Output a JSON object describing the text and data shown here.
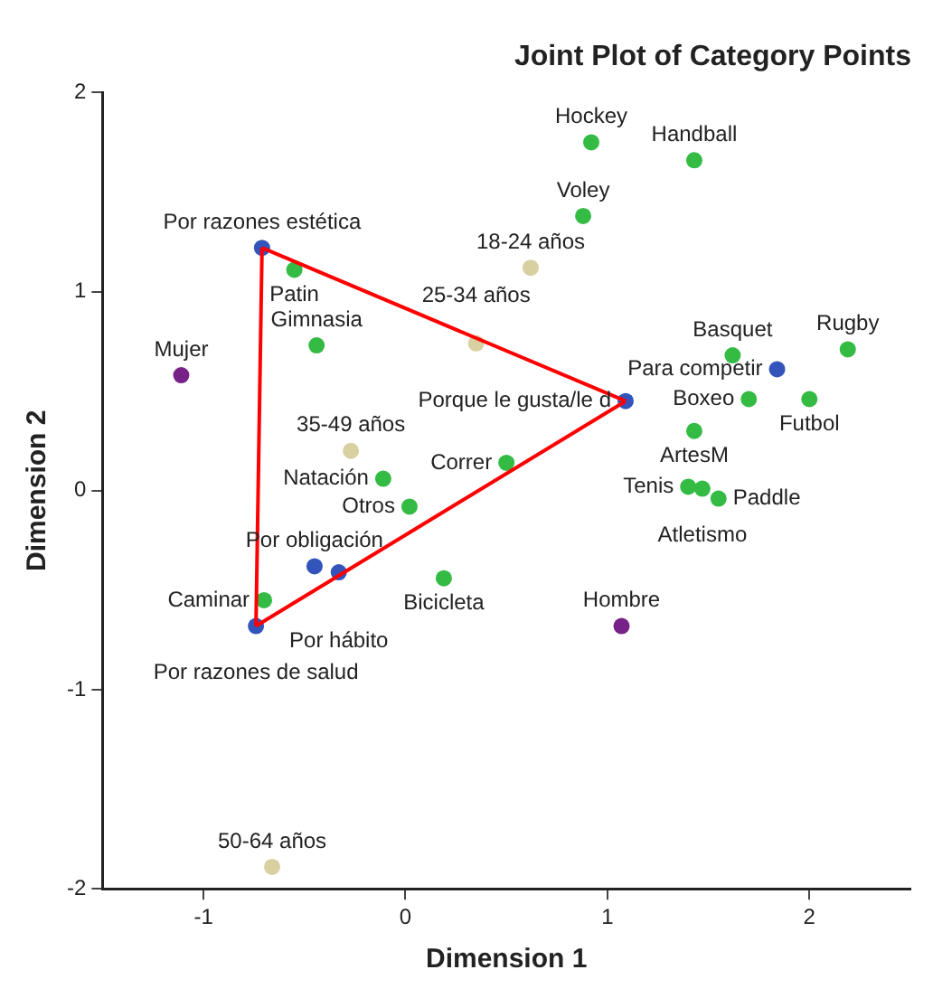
{
  "chart_data": {
    "type": "scatter",
    "title": "Joint Plot of Category Points",
    "xlabel": "Dimension 1",
    "ylabel": "Dimension 2",
    "xlim": [
      -1.5,
      2.5
    ],
    "ylim": [
      -2,
      2
    ],
    "xticks": [
      -1,
      0,
      1,
      2
    ],
    "yticks": [
      -2,
      -1,
      0,
      1,
      2
    ],
    "grid": false,
    "legend": false,
    "marker": "circle",
    "series": [
      {
        "type": "line",
        "color": "#ff0000",
        "marker": "none",
        "x": [
          -0.74,
          -0.71
        ],
        "values": [
          -0.68,
          1.22
        ]
      },
      {
        "type": "line",
        "color": "#ff0000",
        "marker": "none",
        "x": [
          -0.74,
          1.09
        ],
        "values": [
          -0.68,
          0.45
        ]
      },
      {
        "type": "line",
        "color": "#ff0000",
        "marker": "none",
        "x": [
          -0.71,
          1.09
        ],
        "values": [
          1.22,
          0.45
        ]
      },
      {
        "color": "#33bb44",
        "x": [
          0.92,
          1.43,
          0.88,
          -0.55,
          -0.44,
          1.62,
          2.19,
          2.0,
          1.7,
          1.43,
          1.4,
          1.47,
          1.55,
          0.5,
          -0.11,
          0.02,
          0.19,
          -0.7
        ],
        "values": [
          1.75,
          1.66,
          1.38,
          1.11,
          0.73,
          0.68,
          0.71,
          0.46,
          0.46,
          0.3,
          0.02,
          0.01,
          -0.04,
          0.14,
          0.06,
          -0.08,
          -0.44,
          -0.55
        ]
      },
      {
        "color": "#3355bb",
        "x": [
          -0.71,
          1.84,
          1.09,
          -0.45,
          -0.33,
          -0.74
        ],
        "values": [
          1.22,
          0.61,
          0.45,
          -0.38,
          -0.41,
          -0.68
        ]
      },
      {
        "color": "#772288",
        "x": [
          -1.11,
          1.07
        ],
        "values": [
          0.58,
          -0.68
        ]
      },
      {
        "color": "#d8d0a0",
        "x": [
          0.62,
          0.35,
          -0.27,
          -0.66
        ],
        "values": [
          1.12,
          0.74,
          0.2,
          -1.89
        ]
      }
    ],
    "annotations": [
      {
        "text": "Hockey",
        "x": 0.92,
        "y": 1.75
      },
      {
        "text": "Handball",
        "x": 1.43,
        "y": 1.66
      },
      {
        "text": "Voley",
        "x": 0.88,
        "y": 1.38
      },
      {
        "text": "Patin",
        "x": -0.55,
        "y": 1.11
      },
      {
        "text": "Gimnasia",
        "x": -0.44,
        "y": 0.73
      },
      {
        "text": "Basquet",
        "x": 1.62,
        "y": 0.68
      },
      {
        "text": "Rugby",
        "x": 2.19,
        "y": 0.71
      },
      {
        "text": "Futbol",
        "x": 2.0,
        "y": 0.46
      },
      {
        "text": "Boxeo",
        "x": 1.7,
        "y": 0.46
      },
      {
        "text": "ArtesM",
        "x": 1.43,
        "y": 0.3
      },
      {
        "text": "Tenis",
        "x": 1.4,
        "y": 0.02
      },
      {
        "text": "Atletismo",
        "x": 1.47,
        "y": 0.01
      },
      {
        "text": "Paddle",
        "x": 1.55,
        "y": -0.04
      },
      {
        "text": "Correr",
        "x": 0.5,
        "y": 0.14
      },
      {
        "text": "Natación",
        "x": -0.11,
        "y": 0.06
      },
      {
        "text": "Otros",
        "x": 0.02,
        "y": -0.08
      },
      {
        "text": "Bicicleta",
        "x": 0.19,
        "y": -0.44
      },
      {
        "text": "Caminar",
        "x": -0.7,
        "y": -0.55
      },
      {
        "text": "Por razones estética",
        "x": -0.71,
        "y": 1.22
      },
      {
        "text": "Para competir",
        "x": 1.84,
        "y": 0.61
      },
      {
        "text": "Porque le gusta/le d",
        "x": 1.09,
        "y": 0.45
      },
      {
        "text": "Por obligación",
        "x": -0.45,
        "y": -0.38
      },
      {
        "text": "Por hábito",
        "x": -0.33,
        "y": -0.41
      },
      {
        "text": "Por razones de salud",
        "x": -0.74,
        "y": -0.68
      },
      {
        "text": "Mujer",
        "x": -1.11,
        "y": 0.58
      },
      {
        "text": "Hombre",
        "x": 1.07,
        "y": -0.68
      },
      {
        "text": "18-24 años",
        "x": 0.62,
        "y": 1.12
      },
      {
        "text": "25-34 años",
        "x": 0.35,
        "y": 0.74
      },
      {
        "text": "35-49 años",
        "x": -0.27,
        "y": 0.2
      },
      {
        "text": "50-64 años",
        "x": -0.66,
        "y": -1.89
      }
    ]
  }
}
